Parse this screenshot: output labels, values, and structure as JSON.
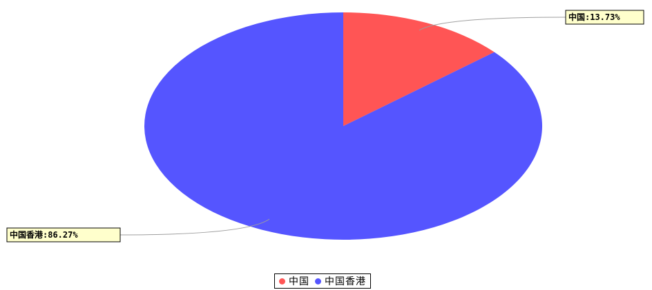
{
  "chart_data": {
    "type": "pie",
    "title": "",
    "slices": [
      {
        "name": "中国",
        "value": 13.73,
        "label": "中国:13.73%",
        "color": "#ff5555"
      },
      {
        "name": "中国香港",
        "value": 86.27,
        "label": "中国香港:86.27%",
        "color": "#5555ff"
      }
    ],
    "legend": {
      "position": "bottom-center",
      "items": [
        "中国",
        "中国香港"
      ]
    },
    "label_box_color": "#ffffcc",
    "leader_line_color": "#9e9e9e"
  }
}
